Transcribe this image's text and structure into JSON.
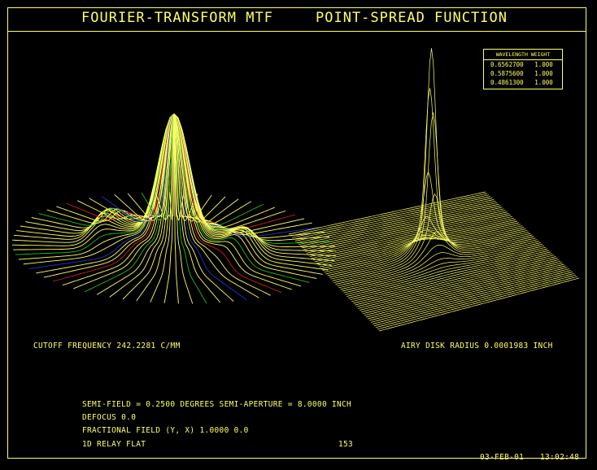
{
  "header": {
    "left_title": "FOURIER-TRANSFORM MTF",
    "right_title": "POINT-SPREAD FUNCTION"
  },
  "legend": {
    "header": "WAVELENGTH WEIGHT",
    "rows": [
      {
        "wavelength": "0.6562700",
        "weight": "1.000"
      },
      {
        "wavelength": "0.5875600",
        "weight": "1.000"
      },
      {
        "wavelength": "0.4861300",
        "weight": "1.000"
      }
    ]
  },
  "mtf": {
    "cutoff_label": "CUTOFF FREQUENCY  242.2281 C/MM"
  },
  "psf": {
    "airy_label": "AIRY DISK RADIUS  0.0001983 INCH"
  },
  "info": {
    "line1": "SEMI-FIELD =  0.2500 DEGREES  SEMI-APERTURE =  8.0000 INCH",
    "line2": "DEFOCUS 0.0",
    "line3": "FRACTIONAL FIELD (Y, X)  1.0000 0.0",
    "line4": "1D RELAY FLAT",
    "page_number": "153",
    "date": "03-FEB-01",
    "time": "13:02:48"
  },
  "colors": {
    "foreground": "#ffff66",
    "background": "#000000",
    "mtf_green": "#22bb22",
    "mtf_red": "#cc2222",
    "mtf_blue": "#2233cc"
  }
}
